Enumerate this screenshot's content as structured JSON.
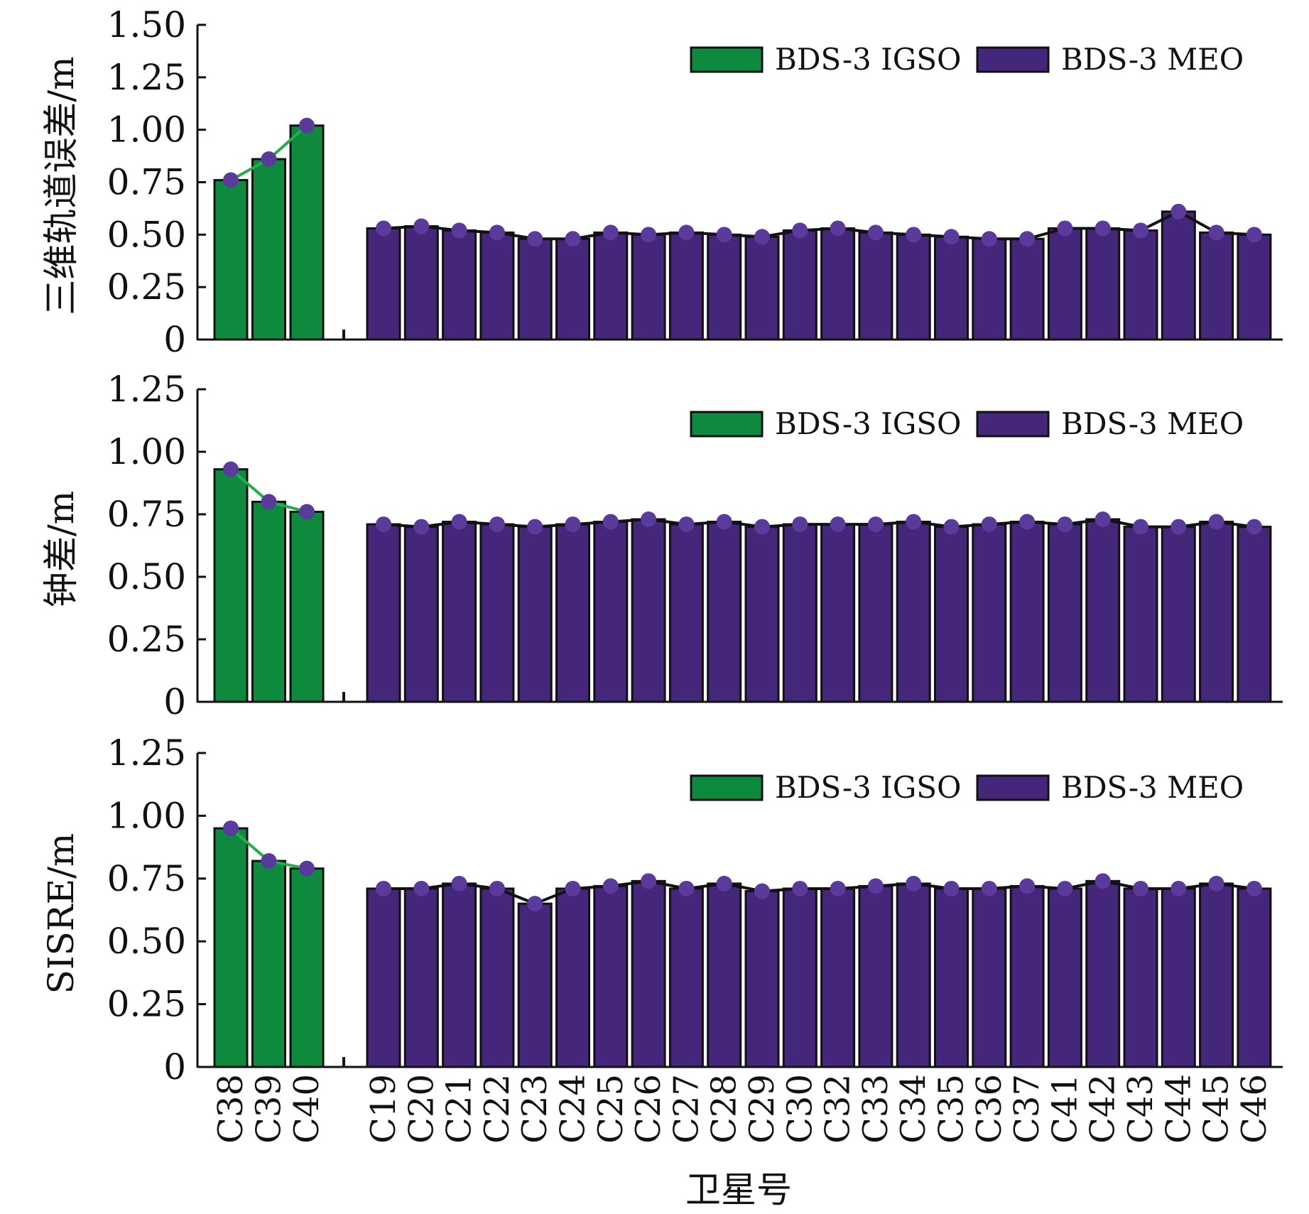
{
  "chart_data": {
    "type": "bar",
    "categories": [
      "C38",
      "C39",
      "C40",
      "C19",
      "C20",
      "C21",
      "C22",
      "C23",
      "C24",
      "C25",
      "C26",
      "C27",
      "C28",
      "C29",
      "C30",
      "C32",
      "C33",
      "C34",
      "C35",
      "C36",
      "C37",
      "C41",
      "C42",
      "C43",
      "C44",
      "C45",
      "C46"
    ],
    "groups": [
      {
        "name": "BDS-3 IGSO",
        "categories": [
          "C38",
          "C39",
          "C40"
        ],
        "color": "#0d8a3e",
        "line_color": "#1fb04a"
      },
      {
        "name": "BDS-3 MEO",
        "categories": [
          "C19",
          "C20",
          "C21",
          "C22",
          "C23",
          "C24",
          "C25",
          "C26",
          "C27",
          "C28",
          "C29",
          "C30",
          "C32",
          "C33",
          "C34",
          "C35",
          "C36",
          "C37",
          "C41",
          "C42",
          "C43",
          "C44",
          "C45",
          "C46"
        ],
        "color": "#44267a",
        "line_color": "#111111"
      }
    ],
    "marker_color": "#5a3a9a",
    "xlabel": "卫星号",
    "panels": [
      {
        "ylabel": "三维轨道误差/m",
        "ylim": [
          0,
          1.5
        ],
        "yticks": [
          0,
          0.25,
          0.5,
          0.75,
          1.0,
          1.25,
          1.5
        ],
        "ytick_labels": [
          "0",
          "0.25",
          "0.50",
          "0.75",
          "1.00",
          "1.25",
          "1.50"
        ],
        "legend": [
          "BDS-3 IGSO",
          "BDS-3 MEO"
        ],
        "legend_position": "top-right",
        "values": [
          0.76,
          0.86,
          1.02,
          0.53,
          0.54,
          0.52,
          0.51,
          0.48,
          0.48,
          0.51,
          0.5,
          0.51,
          0.5,
          0.49,
          0.52,
          0.53,
          0.51,
          0.5,
          0.49,
          0.48,
          0.48,
          0.53,
          0.53,
          0.52,
          0.61,
          0.51,
          0.5
        ]
      },
      {
        "ylabel": "钟差/m",
        "ylim": [
          0,
          1.25
        ],
        "yticks": [
          0,
          0.25,
          0.5,
          0.75,
          1.0,
          1.25
        ],
        "ytick_labels": [
          "0",
          "0.25",
          "0.50",
          "0.75",
          "1.00",
          "1.25"
        ],
        "legend": [
          "BDS-3 IGSO",
          "BDS-3 MEO"
        ],
        "legend_position": "top-right",
        "values": [
          0.93,
          0.8,
          0.76,
          0.71,
          0.7,
          0.72,
          0.71,
          0.7,
          0.71,
          0.72,
          0.73,
          0.71,
          0.72,
          0.7,
          0.71,
          0.71,
          0.71,
          0.72,
          0.7,
          0.71,
          0.72,
          0.71,
          0.73,
          0.7,
          0.7,
          0.72,
          0.7
        ]
      },
      {
        "ylabel": "SISRE/m",
        "ylim": [
          0,
          1.25
        ],
        "yticks": [
          0,
          0.25,
          0.5,
          0.75,
          1.0,
          1.25
        ],
        "ytick_labels": [
          "0",
          "0.25",
          "0.50",
          "0.75",
          "1.00",
          "1.25"
        ],
        "legend": [
          "BDS-3 IGSO",
          "BDS-3 MEO"
        ],
        "legend_position": "top-right",
        "values": [
          0.95,
          0.82,
          0.79,
          0.71,
          0.71,
          0.73,
          0.71,
          0.65,
          0.71,
          0.72,
          0.74,
          0.71,
          0.73,
          0.7,
          0.71,
          0.71,
          0.72,
          0.73,
          0.71,
          0.71,
          0.72,
          0.71,
          0.74,
          0.71,
          0.71,
          0.73,
          0.71
        ]
      }
    ]
  }
}
